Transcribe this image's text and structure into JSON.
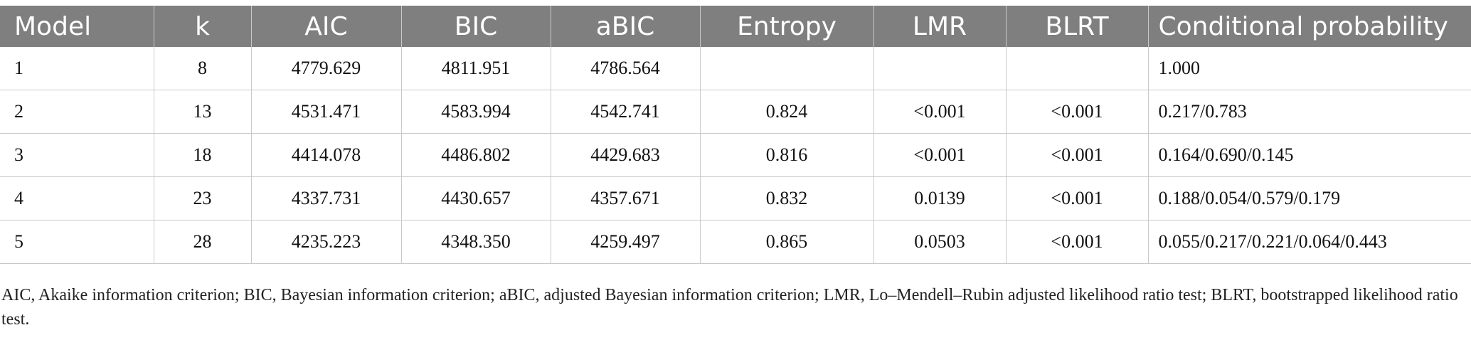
{
  "table": {
    "headers": [
      "Model",
      "k",
      "AIC",
      "BIC",
      "aBIC",
      "Entropy",
      "LMR",
      "BLRT",
      "Conditional probability"
    ],
    "rows": [
      [
        "1",
        "8",
        "4779.629",
        "4811.951",
        "4786.564",
        "",
        "",
        "",
        "1.000"
      ],
      [
        "2",
        "13",
        "4531.471",
        "4583.994",
        "4542.741",
        "0.824",
        "<0.001",
        "<0.001",
        "0.217/0.783"
      ],
      [
        "3",
        "18",
        "4414.078",
        "4486.802",
        "4429.683",
        "0.816",
        "<0.001",
        "<0.001",
        "0.164/0.690/0.145"
      ],
      [
        "4",
        "23",
        "4337.731",
        "4430.657",
        "4357.671",
        "0.832",
        "0.0139",
        "<0.001",
        "0.188/0.054/0.579/0.179"
      ],
      [
        "5",
        "28",
        "4235.223",
        "4348.350",
        "4259.497",
        "0.865",
        "0.0503",
        "<0.001",
        "0.055/0.217/0.221/0.064/0.443"
      ]
    ]
  },
  "footnote": "AIC, Akaike information criterion; BIC, Bayesian information criterion; aBIC, adjusted Bayesian information criterion; LMR, Lo–Mendell–Rubin adjusted likelihood ratio test; BLRT, bootstrapped likelihood ratio test."
}
